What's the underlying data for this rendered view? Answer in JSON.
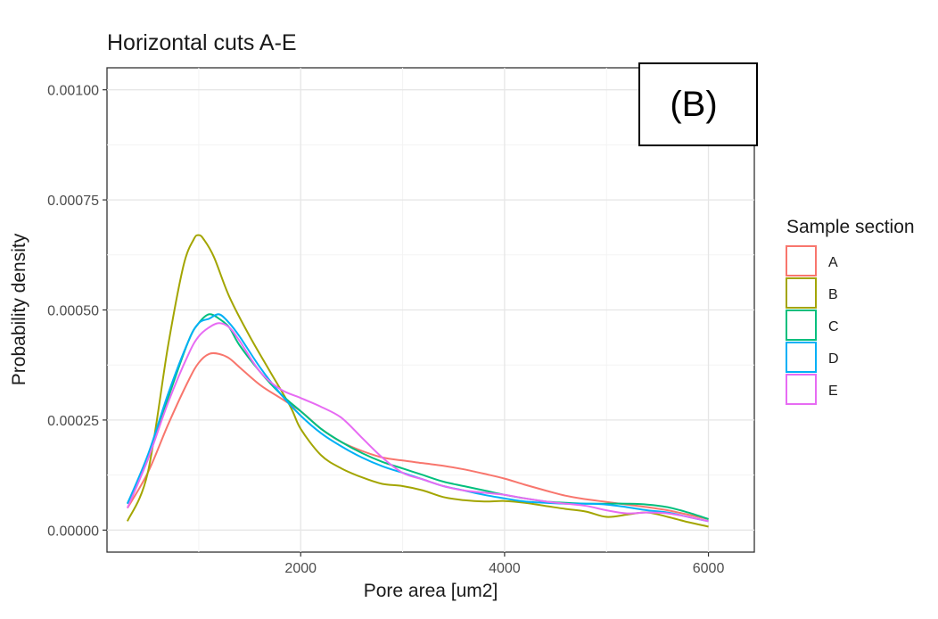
{
  "chart_data": {
    "type": "line",
    "title": "Horizontal cuts A-E",
    "xlabel": "Pore area [um2]",
    "ylabel": "Probability density",
    "xlim": [
      100,
      6450
    ],
    "ylim": [
      -5e-05,
      0.00105
    ],
    "x_ticks": [
      2000,
      4000,
      6000
    ],
    "x_tick_labels": [
      "2000",
      "4000",
      "6000"
    ],
    "y_ticks": [
      0.0,
      0.00025,
      0.0005,
      0.00075,
      0.001
    ],
    "y_tick_labels": [
      "0.00000",
      "0.00025",
      "0.00050",
      "0.00075",
      "0.00100"
    ],
    "grid": true,
    "legend": {
      "title": "Sample section",
      "placement": "right"
    },
    "panel_label": "(B)",
    "series": [
      {
        "name": "A",
        "color": "#F8766D",
        "x": [
          300,
          500,
          700,
          900,
          1000,
          1100,
          1200,
          1300,
          1400,
          1600,
          1800,
          2000,
          2200,
          2400,
          2600,
          2800,
          3000,
          3200,
          3400,
          3600,
          3800,
          4000,
          4200,
          4400,
          4600,
          4800,
          5000,
          5200,
          5400,
          5600,
          5800,
          6000
        ],
        "y": [
          5e-05,
          0.00013,
          0.00024,
          0.00034,
          0.00038,
          0.0004,
          0.0004,
          0.00039,
          0.00037,
          0.00033,
          0.0003,
          0.00027,
          0.00023,
          0.0002,
          0.00018,
          0.000165,
          0.000158,
          0.000152,
          0.000146,
          0.000138,
          0.000128,
          0.000117,
          0.000103,
          9e-05,
          7.8e-05,
          7e-05,
          6.4e-05,
          5.8e-05,
          5.2e-05,
          4.5e-05,
          3.5e-05,
          2.5e-05
        ]
      },
      {
        "name": "B",
        "color": "#A3A500",
        "x": [
          300,
          500,
          700,
          850,
          950,
          1000,
          1050,
          1150,
          1300,
          1500,
          1700,
          1900,
          2000,
          2200,
          2400,
          2600,
          2800,
          3000,
          3200,
          3400,
          3600,
          3800,
          4000,
          4200,
          4400,
          4600,
          4800,
          5000,
          5200,
          5400,
          5600,
          5800,
          6000
        ],
        "y": [
          2e-05,
          0.00013,
          0.00042,
          0.0006,
          0.00066,
          0.00067,
          0.00066,
          0.00062,
          0.00053,
          0.00044,
          0.00036,
          0.00028,
          0.00023,
          0.00017,
          0.00014,
          0.00012,
          0.000105,
          0.0001,
          9e-05,
          7.5e-05,
          6.8e-05,
          6.5e-05,
          6.6e-05,
          6.2e-05,
          5.5e-05,
          4.8e-05,
          4.2e-05,
          3e-05,
          3.5e-05,
          4e-05,
          3e-05,
          1.8e-05,
          8e-06
        ]
      },
      {
        "name": "C",
        "color": "#00BF7D",
        "x": [
          300,
          500,
          700,
          900,
          1000,
          1100,
          1200,
          1300,
          1400,
          1600,
          1800,
          2000,
          2200,
          2400,
          2600,
          2800,
          3000,
          3200,
          3400,
          3600,
          3800,
          4000,
          4200,
          4400,
          4600,
          4800,
          5000,
          5200,
          5400,
          5600,
          5800,
          6000
        ],
        "y": [
          6e-05,
          0.00016,
          0.0003,
          0.00043,
          0.00047,
          0.00049,
          0.00048,
          0.00046,
          0.00042,
          0.00036,
          0.00031,
          0.00027,
          0.00023,
          0.0002,
          0.000175,
          0.000155,
          0.00014,
          0.000125,
          0.00011,
          0.0001,
          9e-05,
          8e-05,
          7.2e-05,
          6.5e-05,
          6.2e-05,
          6e-05,
          6e-05,
          6e-05,
          5.8e-05,
          5.2e-05,
          4e-05,
          2.5e-05
        ]
      },
      {
        "name": "D",
        "color": "#00B0F6",
        "x": [
          300,
          500,
          700,
          900,
          1000,
          1100,
          1200,
          1300,
          1400,
          1600,
          1800,
          2000,
          2200,
          2400,
          2600,
          2800,
          3000,
          3200,
          3400,
          3600,
          3800,
          4000,
          4200,
          4400,
          4600,
          4800,
          5000,
          5200,
          5400,
          5600,
          5800,
          6000
        ],
        "y": [
          6e-05,
          0.00017,
          0.00031,
          0.00043,
          0.00047,
          0.00048,
          0.00049,
          0.00047,
          0.00044,
          0.00037,
          0.00031,
          0.00026,
          0.00022,
          0.00019,
          0.000165,
          0.000145,
          0.00013,
          0.000115,
          0.0001,
          9e-05,
          8e-05,
          7.2e-05,
          6.5e-05,
          6.2e-05,
          6e-05,
          6e-05,
          5.8e-05,
          5.2e-05,
          4.5e-05,
          4e-05,
          3e-05,
          2e-05
        ]
      },
      {
        "name": "E",
        "color": "#E76BF3",
        "x": [
          300,
          500,
          700,
          900,
          1000,
          1100,
          1200,
          1300,
          1400,
          1600,
          1800,
          2000,
          2200,
          2400,
          2600,
          2800,
          3000,
          3200,
          3400,
          3600,
          3800,
          4000,
          4200,
          4400,
          4600,
          4800,
          5000,
          5200,
          5400,
          5600,
          5800,
          6000
        ],
        "y": [
          5e-05,
          0.00016,
          0.00029,
          0.0004,
          0.00044,
          0.00046,
          0.00047,
          0.00046,
          0.00043,
          0.00036,
          0.00032,
          0.0003,
          0.00028,
          0.000255,
          0.00021,
          0.000165,
          0.00013,
          0.000115,
          0.0001,
          9e-05,
          8.5e-05,
          8e-05,
          7.2e-05,
          6.5e-05,
          6e-05,
          5.5e-05,
          4.5e-05,
          3.8e-05,
          4e-05,
          3.8e-05,
          3e-05,
          2e-05
        ]
      }
    ]
  }
}
